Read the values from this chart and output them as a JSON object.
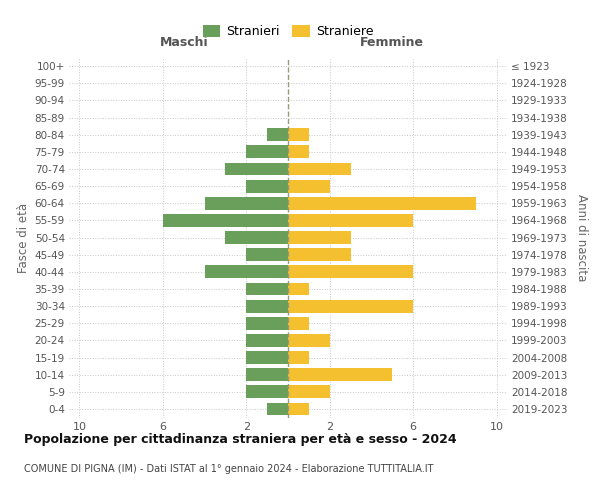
{
  "age_groups": [
    "0-4",
    "5-9",
    "10-14",
    "15-19",
    "20-24",
    "25-29",
    "30-34",
    "35-39",
    "40-44",
    "45-49",
    "50-54",
    "55-59",
    "60-64",
    "65-69",
    "70-74",
    "75-79",
    "80-84",
    "85-89",
    "90-94",
    "95-99",
    "100+"
  ],
  "birth_years": [
    "2019-2023",
    "2014-2018",
    "2009-2013",
    "2004-2008",
    "1999-2003",
    "1994-1998",
    "1989-1993",
    "1984-1988",
    "1979-1983",
    "1974-1978",
    "1969-1973",
    "1964-1968",
    "1959-1963",
    "1954-1958",
    "1949-1953",
    "1944-1948",
    "1939-1943",
    "1934-1938",
    "1929-1933",
    "1924-1928",
    "≤ 1923"
  ],
  "males": [
    1,
    2,
    2,
    2,
    2,
    2,
    2,
    2,
    4,
    2,
    3,
    6,
    4,
    2,
    3,
    2,
    1,
    0,
    0,
    0,
    0
  ],
  "females": [
    1,
    2,
    5,
    1,
    2,
    1,
    6,
    1,
    6,
    3,
    3,
    6,
    9,
    2,
    3,
    1,
    1,
    0,
    0,
    0,
    0
  ],
  "male_color": "#6a9e5b",
  "female_color": "#f5c030",
  "bg_color": "#ffffff",
  "grid_color": "#c8c8c8",
  "center_line_color": "#999977",
  "title": "Popolazione per cittadinanza straniera per età e sesso - 2024",
  "subtitle": "COMUNE DI PIGNA (IM) - Dati ISTAT al 1° gennaio 2024 - Elaborazione TUTTITALIA.IT",
  "left_header": "Maschi",
  "right_header": "Femmine",
  "left_ylabel": "Fasce di età",
  "right_ylabel": "Anni di nascita",
  "legend_male": "Stranieri",
  "legend_female": "Straniere",
  "xlim": 10.5,
  "xtick_positions": [
    -10,
    -6,
    -2,
    2,
    6,
    10
  ],
  "xtick_labels": [
    "10",
    "6",
    "2",
    "2",
    "6",
    "10"
  ],
  "bar_height": 0.75
}
